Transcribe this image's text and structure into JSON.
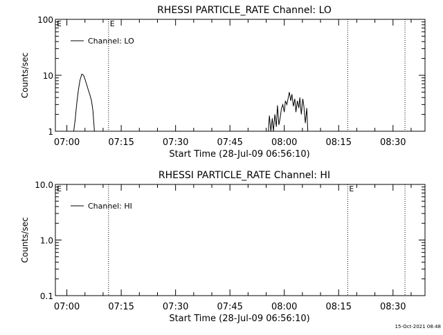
{
  "footer": {
    "timestamp": "15-Oct-2021 08:48"
  },
  "chart_data": [
    {
      "type": "line",
      "title": "RHESSI PARTICLE_RATE Channel: LO",
      "xlabel": "Start Time (28-Jul-09 06:56:10)",
      "ylabel": "Counts/sec",
      "yscale": "log",
      "ylim": [
        1,
        100
      ],
      "xlim_minutes": [
        -3.17,
        98.83
      ],
      "xticks": [
        {
          "min": 0,
          "label": "07:00"
        },
        {
          "min": 15,
          "label": "07:15"
        },
        {
          "min": 30,
          "label": "07:30"
        },
        {
          "min": 45,
          "label": "07:45"
        },
        {
          "min": 60,
          "label": "08:00"
        },
        {
          "min": 75,
          "label": "08:15"
        },
        {
          "min": 90,
          "label": "08:30"
        }
      ],
      "yticks": [
        {
          "v": 1,
          "label": "1"
        },
        {
          "v": 10,
          "label": "10"
        },
        {
          "v": 100,
          "label": "100"
        }
      ],
      "legend": {
        "position": "top-left",
        "entries": [
          "Channel: LO"
        ]
      },
      "event_markers": [
        {
          "min": 11.5,
          "label": "E"
        },
        {
          "min": 77.5,
          "label": ""
        },
        {
          "min": 93.3,
          "label": ""
        }
      ],
      "left_marker": "E",
      "series": [
        {
          "name": "Channel: LO",
          "points": [
            [
              1.9,
              1.0
            ],
            [
              2.3,
              1.6
            ],
            [
              2.7,
              3.0
            ],
            [
              3.2,
              5.5
            ],
            [
              3.6,
              8.0
            ],
            [
              4.1,
              10.5
            ],
            [
              4.6,
              10.0
            ],
            [
              5.0,
              8.5
            ],
            [
              5.4,
              7.0
            ],
            [
              5.9,
              5.5
            ],
            [
              6.3,
              4.6
            ],
            [
              6.8,
              3.5
            ],
            [
              7.2,
              2.3
            ],
            [
              7.6,
              1.0
            ]
          ]
        },
        {
          "name": "Channel: LO",
          "points": [
            [
              55.6,
              1.0
            ],
            [
              55.9,
              1.9
            ],
            [
              56.3,
              1.0
            ],
            [
              56.7,
              1.7
            ],
            [
              57.0,
              1.0
            ],
            [
              57.4,
              2.0
            ],
            [
              57.8,
              1.2
            ],
            [
              58.1,
              2.9
            ],
            [
              58.5,
              1.3
            ],
            [
              58.9,
              1.8
            ],
            [
              59.2,
              2.5
            ],
            [
              59.6,
              3.0
            ],
            [
              60.0,
              2.2
            ],
            [
              60.3,
              3.5
            ],
            [
              60.7,
              3.0
            ],
            [
              61.1,
              4.0
            ],
            [
              61.4,
              5.0
            ],
            [
              61.8,
              3.5
            ],
            [
              62.1,
              4.6
            ],
            [
              62.5,
              2.8
            ],
            [
              62.9,
              3.8
            ],
            [
              63.2,
              2.2
            ],
            [
              63.6,
              3.5
            ],
            [
              64.0,
              2.6
            ],
            [
              64.3,
              4.0
            ],
            [
              64.7,
              2.0
            ],
            [
              65.1,
              3.8
            ],
            [
              65.4,
              2.8
            ],
            [
              65.8,
              1.4
            ],
            [
              66.2,
              2.6
            ],
            [
              66.5,
              1.0
            ]
          ]
        }
      ]
    },
    {
      "type": "line",
      "title": "RHESSI PARTICLE_RATE Channel: HI",
      "xlabel": "Start Time (28-Jul-09 06:56:10)",
      "ylabel": "Counts/sec",
      "yscale": "log",
      "ylim": [
        0.1,
        10
      ],
      "xlim_minutes": [
        -3.17,
        98.83
      ],
      "xticks": [
        {
          "min": 0,
          "label": "07:00"
        },
        {
          "min": 15,
          "label": "07:15"
        },
        {
          "min": 30,
          "label": "07:30"
        },
        {
          "min": 45,
          "label": "07:45"
        },
        {
          "min": 60,
          "label": "08:00"
        },
        {
          "min": 75,
          "label": "08:15"
        },
        {
          "min": 90,
          "label": "08:30"
        }
      ],
      "yticks": [
        {
          "v": 0.1,
          "label": "0.1"
        },
        {
          "v": 1,
          "label": "1.0"
        },
        {
          "v": 10,
          "label": "10.0"
        }
      ],
      "legend": {
        "position": "top-left",
        "entries": [
          "Channel: HI"
        ]
      },
      "event_markers": [
        {
          "min": 11.5,
          "label": ""
        },
        {
          "min": 77.5,
          "label": "E"
        },
        {
          "min": 93.3,
          "label": ""
        }
      ],
      "left_marker": "E",
      "series": [
        {
          "name": "Channel: HI",
          "points": []
        }
      ]
    }
  ]
}
